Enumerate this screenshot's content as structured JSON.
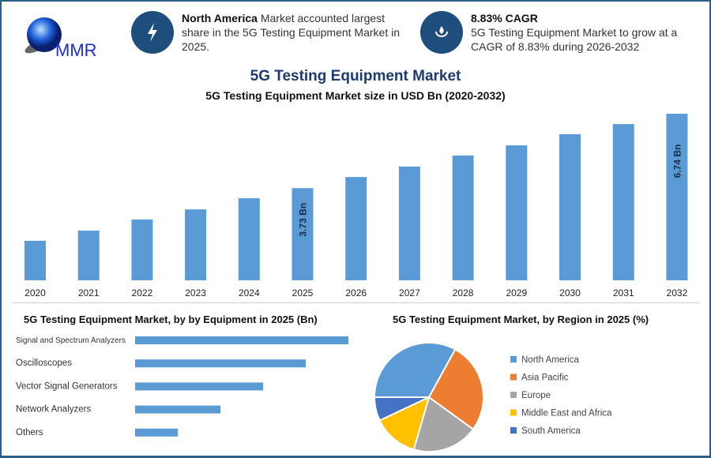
{
  "logo": {
    "text": "MMR"
  },
  "info1": {
    "bold": "North America",
    "text": " Market accounted largest share in the 5G Testing Equipment Market in 2025.",
    "icon": "lightning-icon"
  },
  "info2": {
    "bold": "8.83% CAGR",
    "text": "5G Testing Equipment Market to grow at a CAGR of 8.83% during 2026-2032",
    "icon": "hand-drop-icon"
  },
  "colors": {
    "bar": "#5b9bd5",
    "title": "#1f3a6e",
    "frame": "#2e5f8a"
  },
  "chart_data": [
    {
      "type": "bar",
      "title": "5G Testing Equipment Market",
      "subtitle": "5G Testing Equipment Market size in USD Bn (2020-2032)",
      "categories": [
        "2020",
        "2021",
        "2022",
        "2023",
        "2024",
        "2025",
        "2026",
        "2027",
        "2028",
        "2029",
        "2030",
        "2031",
        "2032"
      ],
      "values": [
        1.6,
        2.01,
        2.46,
        2.87,
        3.32,
        3.73,
        4.18,
        4.6,
        5.05,
        5.46,
        5.91,
        6.32,
        6.74
      ],
      "data_labels": {
        "5": "3.73 Bn",
        "12": "6.74 Bn"
      },
      "ylim": [
        0,
        6.74
      ],
      "grid": false
    },
    {
      "type": "bar",
      "orientation": "horizontal",
      "title": "5G Testing Equipment Market, by by Equipment in 2025 (Bn)",
      "categories": [
        "Signal and Spectrum Analyzers",
        "Oscilloscopes",
        "Vector Signal Generators",
        "Network Analyzers",
        "Others"
      ],
      "values": [
        1.0,
        0.8,
        0.6,
        0.4,
        0.2
      ]
    },
    {
      "type": "pie",
      "title": "5G Testing Equipment Market, by Region in 2025 (%)",
      "legend": "right",
      "labels": [
        "North America",
        "Asia Pacific",
        "Europe",
        "Middle East and Africa",
        "South America"
      ],
      "values": [
        33,
        27,
        19.5,
        13.5,
        7
      ],
      "colors": [
        "#5b9bd5",
        "#ed7d31",
        "#a5a5a5",
        "#ffc000",
        "#4472c4"
      ]
    }
  ]
}
